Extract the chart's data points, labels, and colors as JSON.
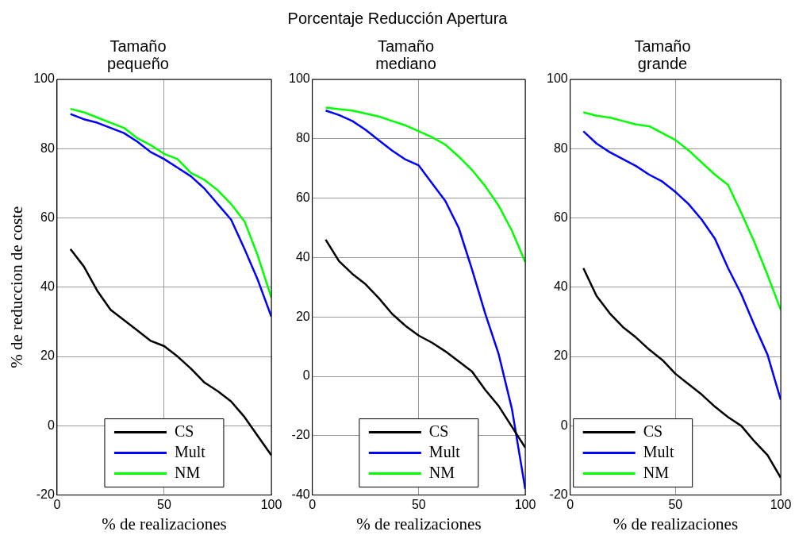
{
  "chart_data": [
    {
      "type": "line",
      "title": "Tamaño pequeño",
      "annotations": [
        "Porcentaje Reducción Apertura"
      ],
      "xlabel": "% de realizaciones",
      "ylabel": "% de reduccion de coste",
      "x": [
        6.25,
        12.5,
        18.75,
        25,
        31.25,
        37.5,
        43.75,
        50,
        56.25,
        62.5,
        68.75,
        75,
        81.25,
        87.5,
        93.75,
        100
      ],
      "xlim": [
        0,
        100
      ],
      "xticks": [
        0,
        50,
        100
      ],
      "ylim": [
        -20,
        100
      ],
      "yticks": [
        -20,
        0,
        20,
        40,
        60,
        80,
        100
      ],
      "grid": true,
      "legend": "bottom",
      "line_style": "solid",
      "series": [
        {
          "name": "CS",
          "color": "#000000",
          "values": [
            51,
            46,
            39,
            33.5,
            30.5,
            27.5,
            24.5,
            23,
            20,
            16.5,
            12.5,
            10,
            7,
            2.5,
            -3,
            -8.5
          ]
        },
        {
          "name": "Mult",
          "color": "#0000ff",
          "values": [
            90,
            88.5,
            87.5,
            86,
            84.5,
            82,
            79,
            77,
            74.5,
            72,
            68.5,
            64,
            59.5,
            51,
            42,
            31.5
          ]
        },
        {
          "name": "NM",
          "color": "#00ff00",
          "values": [
            91.5,
            90.5,
            89,
            87.5,
            86,
            83,
            81,
            78.5,
            77,
            73,
            71,
            68,
            64,
            59,
            49,
            37
          ]
        }
      ]
    },
    {
      "type": "line",
      "title": "Tamaño mediano",
      "xlabel": "% de realizaciones",
      "x": [
        6.25,
        12.5,
        18.75,
        25,
        31.25,
        37.5,
        43.75,
        50,
        56.25,
        62.5,
        68.75,
        75,
        81.25,
        87.5,
        93.75,
        100
      ],
      "xlim": [
        0,
        100
      ],
      "xticks": [
        0,
        50,
        100
      ],
      "ylim": [
        -40,
        100
      ],
      "yticks": [
        -40,
        -20,
        0,
        20,
        40,
        60,
        80,
        100
      ],
      "grid": true,
      "legend": "bottom",
      "line_style": "solid",
      "series": [
        {
          "name": "CS",
          "color": "#000000",
          "values": [
            46,
            38.8,
            34.5,
            31,
            26.3,
            21,
            17,
            13.7,
            11.3,
            8.4,
            5,
            1.6,
            -4.6,
            -10,
            -17,
            -24
          ]
        },
        {
          "name": "Mult",
          "color": "#0000ff",
          "values": [
            89.5,
            88,
            86,
            83,
            79.5,
            76,
            73,
            71,
            65,
            59,
            50,
            36,
            21,
            7.5,
            -11,
            -38
          ]
        },
        {
          "name": "NM",
          "color": "#00ff00",
          "values": [
            90.5,
            90,
            89.5,
            88.5,
            87.5,
            86,
            84.5,
            82.5,
            80.5,
            78,
            74,
            69.5,
            64,
            57.5,
            49,
            38.5
          ]
        }
      ]
    },
    {
      "type": "line",
      "title": "Tamaño grande",
      "xlabel": "% de realizaciones",
      "x": [
        6.25,
        12.5,
        18.75,
        25,
        31.25,
        37.5,
        43.75,
        50,
        56.25,
        62.5,
        68.75,
        75,
        81.25,
        87.5,
        93.75,
        100
      ],
      "xlim": [
        0,
        100
      ],
      "xticks": [
        0,
        50,
        100
      ],
      "ylim": [
        -20,
        100
      ],
      "yticks": [
        -20,
        0,
        20,
        40,
        60,
        80,
        100
      ],
      "grid": true,
      "legend": "bottom left",
      "line_style": "solid",
      "series": [
        {
          "name": "CS",
          "color": "#000000",
          "values": [
            45.5,
            37.5,
            32.5,
            28.5,
            25.5,
            22,
            19,
            15,
            12,
            9,
            5.5,
            2.5,
            0,
            -4.5,
            -8.5,
            -15
          ]
        },
        {
          "name": "Mult",
          "color": "#0000ff",
          "values": [
            85,
            81.5,
            79,
            77,
            75,
            72.5,
            70.5,
            67.5,
            64,
            59.5,
            54,
            45.5,
            38,
            29,
            20.5,
            7.5
          ]
        },
        {
          "name": "NM",
          "color": "#00ff00",
          "values": [
            90.5,
            89.5,
            89,
            88,
            87,
            86.5,
            84.5,
            82.5,
            79.5,
            76,
            72.5,
            69.5,
            61.5,
            53,
            43.5,
            33.5
          ]
        }
      ]
    }
  ]
}
